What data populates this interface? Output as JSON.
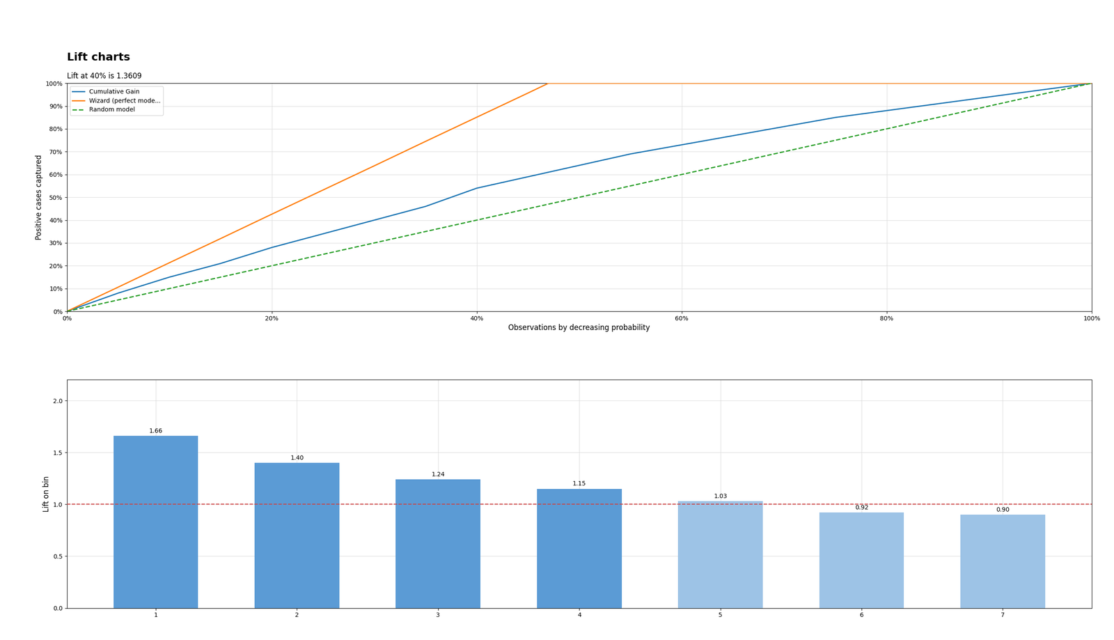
{
  "chart_data": [
    {
      "type": "line",
      "title": "Lift charts",
      "subtitle": "Lift at 40% is 1.3609",
      "x_label": "Observations by decreasing probability",
      "y_label": "Positive cases captured",
      "series": [
        {
          "name": "Cumulative Gain",
          "x": [
            0,
            5,
            10,
            15,
            20,
            25,
            30,
            35,
            40,
            45,
            50,
            55,
            60,
            65,
            70,
            75,
            80,
            85,
            90,
            95,
            100
          ],
          "values": [
            0,
            8,
            15,
            21,
            28,
            34,
            40,
            46,
            54,
            59,
            64,
            69,
            73,
            77,
            81,
            85,
            88,
            91,
            94,
            97,
            100
          ]
        },
        {
          "name": "Wizard (perfect mode...",
          "x": [
            0,
            5,
            10,
            15,
            20,
            25,
            30,
            35,
            40,
            45,
            47,
            50,
            55,
            60,
            65,
            70,
            75,
            80,
            85,
            90,
            95,
            100
          ],
          "values": [
            0,
            10.6,
            21.3,
            31.9,
            42.6,
            53.2,
            63.8,
            74.5,
            85.1,
            95.7,
            100,
            100,
            100,
            100,
            100,
            100,
            100,
            100,
            100,
            100,
            100,
            100
          ]
        },
        {
          "name": "Random model",
          "x": [
            0,
            100
          ],
          "values": [
            0,
            100
          ],
          "line_style": "dashed"
        }
      ],
      "xlim": [
        0,
        100
      ],
      "ylim": [
        0,
        100
      ],
      "xticks": [
        {
          "value": 0,
          "label": "0%"
        },
        {
          "value": 20,
          "label": "20%"
        },
        {
          "value": 40,
          "label": "40%"
        },
        {
          "value": 60,
          "label": "60%"
        },
        {
          "value": 80,
          "label": "80%"
        },
        {
          "value": 100,
          "label": "100%"
        }
      ],
      "yticks": [
        {
          "value": 0,
          "label": "0%"
        },
        {
          "value": 10,
          "label": "10%"
        },
        {
          "value": 20,
          "label": "20%"
        },
        {
          "value": 30,
          "label": "30%"
        },
        {
          "value": 40,
          "label": "40%"
        },
        {
          "value": 50,
          "label": "50%"
        },
        {
          "value": 60,
          "label": "60%"
        },
        {
          "value": 70,
          "label": "70%"
        },
        {
          "value": 80,
          "label": "80%"
        },
        {
          "value": 90,
          "label": "90%"
        },
        {
          "value": 100,
          "label": "100%"
        }
      ],
      "grid": true,
      "legend": "upper left"
    },
    {
      "type": "bar",
      "y_label": "Lift on bin",
      "categories": [
        "1",
        "2",
        "3",
        "4",
        "5",
        "6",
        "7"
      ],
      "values": [
        1.66,
        1.4,
        1.24,
        1.15,
        1.03,
        0.92,
        0.9
      ],
      "value_labels": [
        "1.66",
        "1.40",
        "1.24",
        "1.15",
        "1.03",
        "0.92",
        "0.90"
      ],
      "data_labels": true,
      "colors": [
        "#5b9bd5",
        "#5b9bd5",
        "#5b9bd5",
        "#5b9bd5",
        "#9dc3e6",
        "#9dc3e6",
        "#9dc3e6"
      ],
      "reference_line": {
        "value": 1.0,
        "color": "#cc4444",
        "line_style": "dashed"
      },
      "ylim": [
        0,
        2.2
      ],
      "yticks": [
        {
          "value": 0.0,
          "label": "0.0"
        },
        0.5,
        {
          "value": 1.0,
          "label": "1.0"
        },
        1.5,
        {
          "value": 2.0,
          "label": "2.0"
        }
      ],
      "grid": true
    }
  ]
}
